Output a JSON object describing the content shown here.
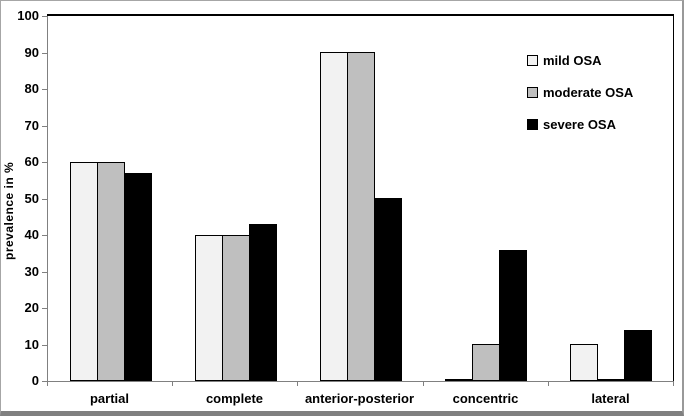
{
  "chart_data": {
    "type": "bar",
    "title": "",
    "xlabel": "",
    "ylabel": "prevalence in %",
    "categories": [
      "partial",
      "complete",
      "anterior-posterior",
      "concentric",
      "lateral"
    ],
    "series": [
      {
        "name": "mild OSA",
        "color": "#f2f2f2",
        "values": [
          60,
          40,
          90,
          0,
          10
        ]
      },
      {
        "name": "moderate OSA",
        "color": "#bfbfbf",
        "values": [
          60,
          40,
          90,
          10,
          0
        ]
      },
      {
        "name": "severe OSA",
        "color": "#000000",
        "values": [
          57,
          43,
          50,
          36,
          14
        ]
      }
    ],
    "ylim": [
      0,
      100
    ],
    "ytick_step": 10,
    "grid": false,
    "legend_position": "top-right",
    "bar_border_color": "#000000",
    "axis_color": "#808080",
    "plot_border_color": "#000000"
  }
}
